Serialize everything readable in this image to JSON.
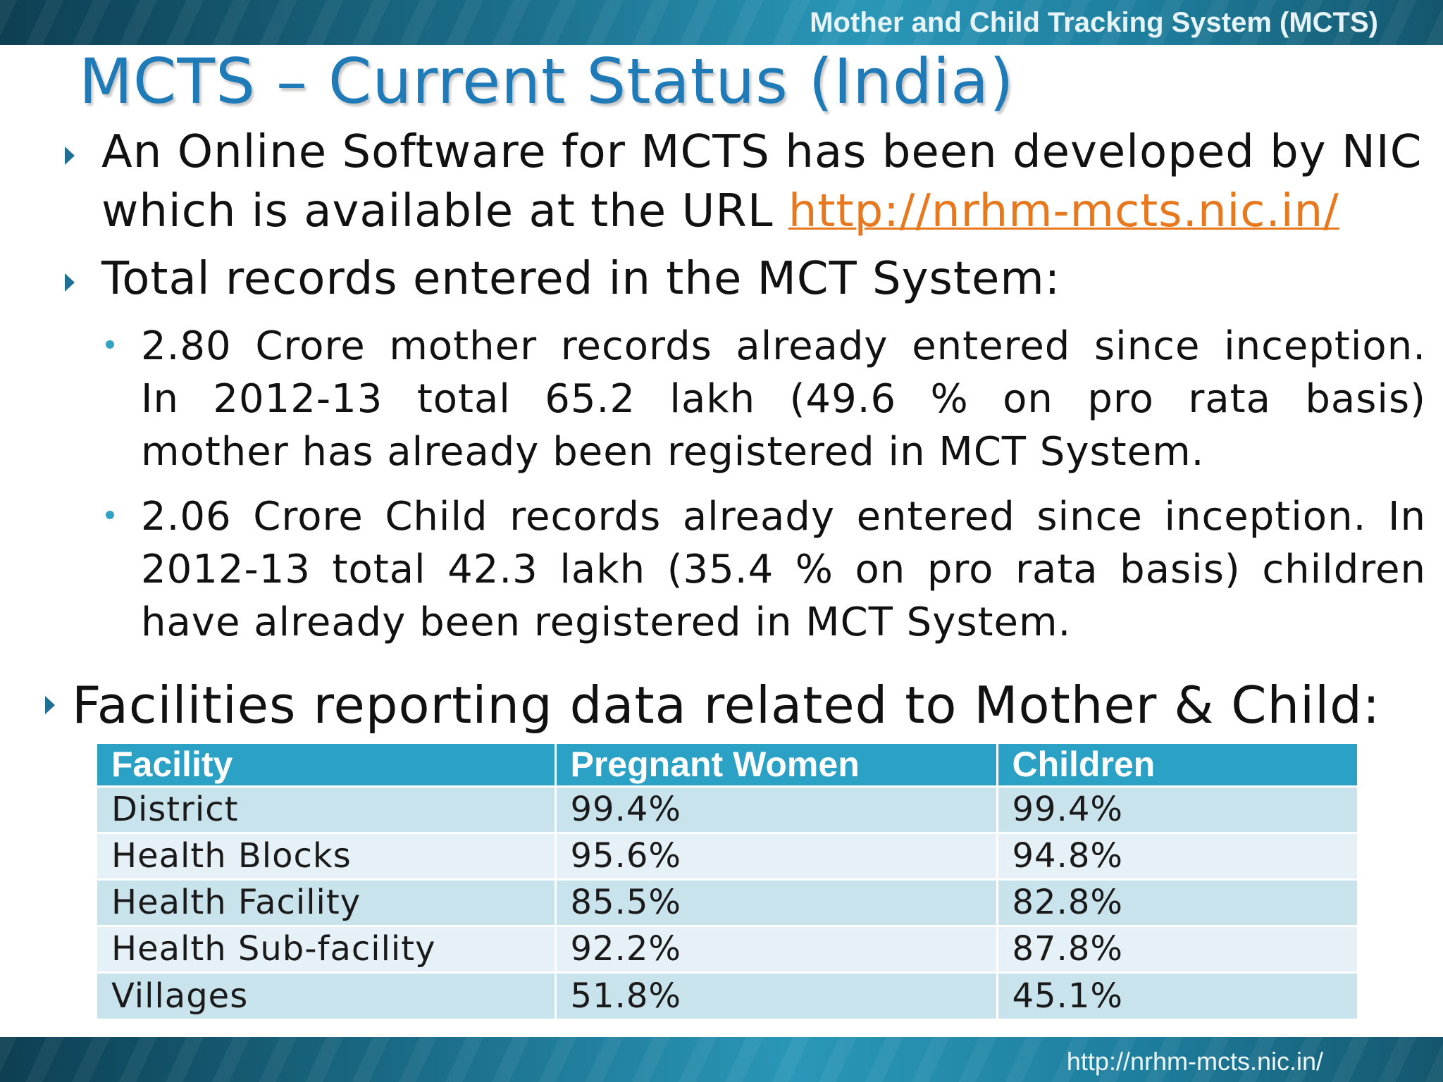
{
  "header": {
    "band_title": "Mother and Child Tracking System (MCTS)"
  },
  "slide": {
    "title": "MCTS – Current Status (India)",
    "bullet1": {
      "line1": "An Online Software for MCTS has been developed by NIC",
      "line2_prefix": "which is available at the URL ",
      "url": "http://nrhm-mcts.nic.in/"
    },
    "bullet2": {
      "text": "Total records entered in the MCT System:",
      "sub1": {
        "line1": "2.80 Crore mother records already  entered since inception.",
        "line2": "In 2012-13 total 65.2 lakh (49.6 % on pro rata basis)",
        "line3": "mother has already been registered in MCT System."
      },
      "sub2": {
        "line1": "2.06 Crore Child records already entered since inception. In",
        "line2": "2012-13 total 42.3 lakh (35.4 % on pro rata basis) children",
        "line3": "have already been registered in MCT System."
      }
    },
    "bullet3": {
      "text": "Facilities reporting data related to Mother & Child:"
    }
  },
  "table": {
    "headers": [
      "Facility",
      "Pregnant Women",
      "Children"
    ],
    "rows": [
      [
        "District",
        "99.4%",
        "99.4%"
      ],
      [
        "Health Blocks",
        "95.6%",
        "94.8%"
      ],
      [
        "Health Facility",
        "85.5%",
        "82.8%"
      ],
      [
        "Health Sub-facility",
        "92.2%",
        "87.8%"
      ],
      [
        "Villages",
        "51.8%",
        "45.1%"
      ]
    ]
  },
  "footer": {
    "url": "http://nrhm-mcts.nic.in/"
  },
  "colors": {
    "band": "#1b6e8a",
    "title_blue": "#1f7ab8",
    "link_orange": "#e8781e",
    "table_header": "#2aa1c5",
    "row_dark": "#c9e3ed",
    "row_light": "#e5f1f6"
  }
}
